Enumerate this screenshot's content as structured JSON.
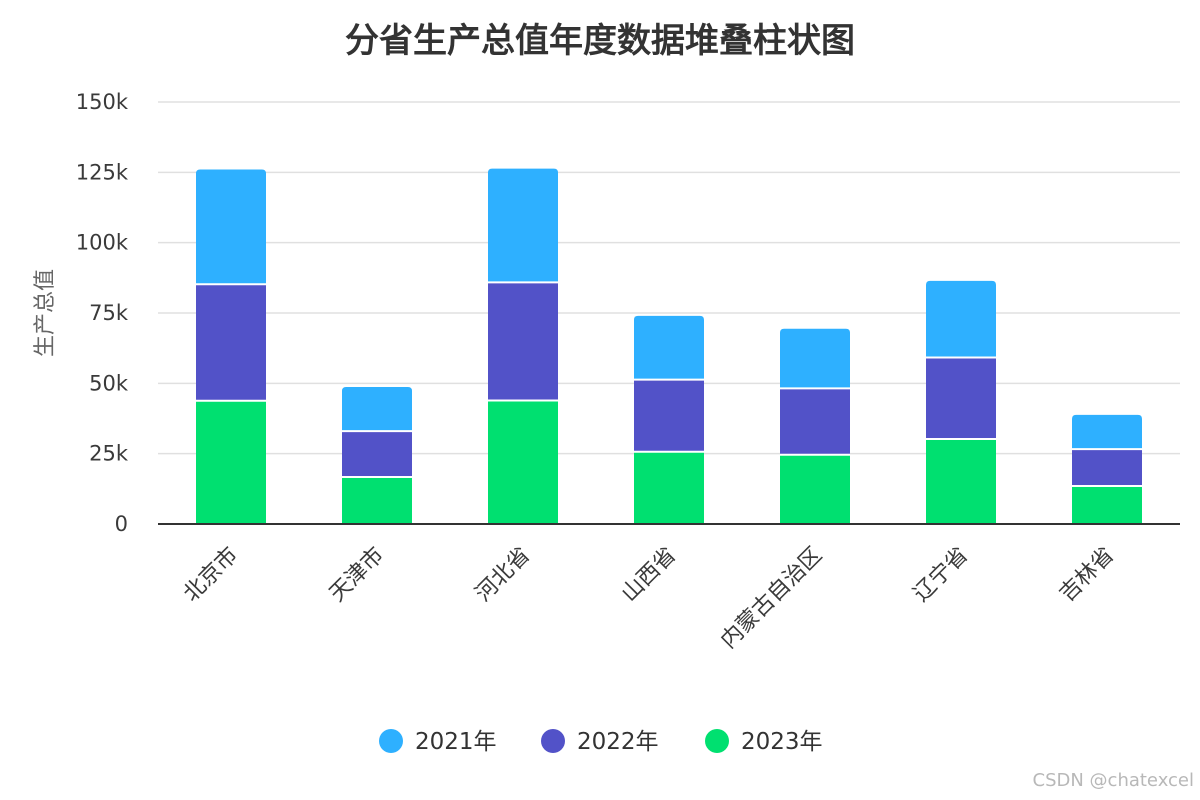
{
  "chart_data": {
    "type": "bar",
    "stacked": true,
    "title": "分省生产总值年度数据堆叠柱状图",
    "xlabel": "",
    "ylabel": "生产总值",
    "categories": [
      "北京市",
      "天津市",
      "河北省",
      "山西省",
      "内蒙古自治区",
      "辽宁省",
      "吉林省"
    ],
    "series": [
      {
        "name": "2023年",
        "color": "#00e070",
        "values": [
          43800,
          16700,
          43900,
          25700,
          24600,
          30200,
          13500
        ]
      },
      {
        "name": "2022年",
        "color": "#5252c8",
        "values": [
          41400,
          16300,
          42000,
          25600,
          23600,
          29000,
          13100
        ]
      },
      {
        "name": "2021年",
        "color": "#2eb0ff",
        "values": [
          40800,
          15700,
          40400,
          22700,
          21200,
          27200,
          12200
        ]
      }
    ],
    "ylim": [
      0,
      150000
    ],
    "yticks": [
      {
        "value": 0,
        "label": "0"
      },
      {
        "value": 25000,
        "label": "25k"
      },
      {
        "value": 50000,
        "label": "50k"
      },
      {
        "value": 75000,
        "label": "75k"
      },
      {
        "value": 100000,
        "label": "100k"
      },
      {
        "value": 125000,
        "label": "125k"
      },
      {
        "value": 150000,
        "label": "150k"
      }
    ],
    "legend_order": [
      "2021年",
      "2022年",
      "2023年"
    ],
    "legend_position": "bottom",
    "grid": true
  },
  "watermark": "CSDN @chatexcel"
}
